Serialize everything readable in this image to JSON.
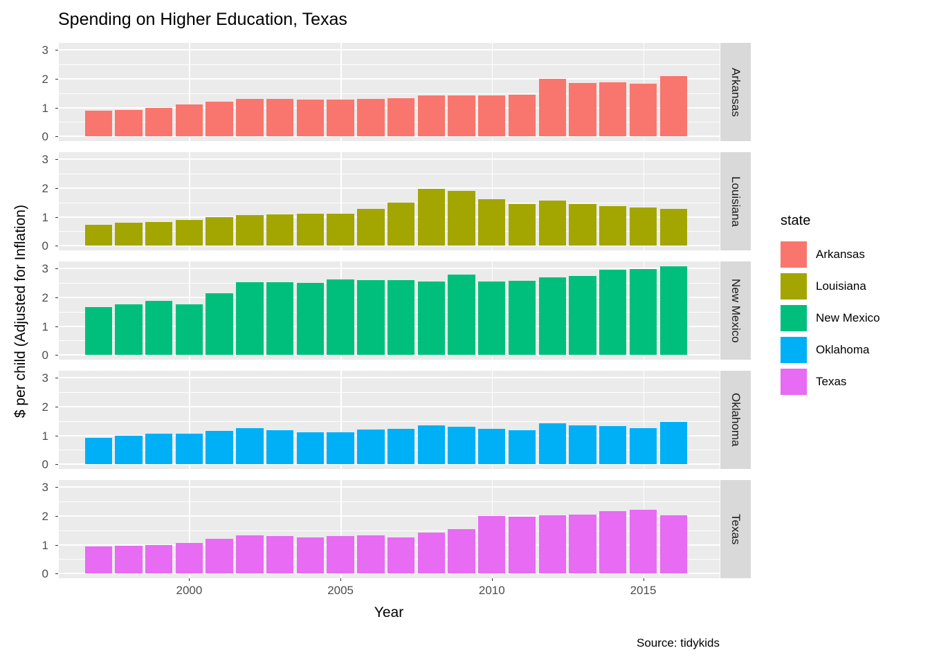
{
  "title": "Spending on Higher Education, Texas",
  "xlabel": "Year",
  "ylabel": "$ per child (Adjusted for Inflation)",
  "source": "Source: tidykids",
  "legend": {
    "title": "state",
    "items": [
      {
        "label": "Arkansas",
        "color": "#F8766D"
      },
      {
        "label": "Louisiana",
        "color": "#A3A500"
      },
      {
        "label": "New Mexico",
        "color": "#00BF7D"
      },
      {
        "label": "Oklahoma",
        "color": "#00B0F6"
      },
      {
        "label": "Texas",
        "color": "#E76BF3"
      }
    ]
  },
  "chart_data": {
    "type": "bar",
    "facet_by": "state",
    "title": "Spending on Higher Education, Texas",
    "xlabel": "Year",
    "ylabel": "$ per child (Adjusted for Inflation)",
    "x": [
      1997,
      1998,
      1999,
      2000,
      2001,
      2002,
      2003,
      2004,
      2005,
      2006,
      2007,
      2008,
      2009,
      2010,
      2011,
      2012,
      2013,
      2014,
      2015,
      2016
    ],
    "x_ticks": [
      2000,
      2005,
      2010,
      2015
    ],
    "y_ticks": [
      0,
      1,
      2,
      3
    ],
    "y_minor": [
      0.5,
      1.5,
      2.5
    ],
    "ylim": [
      0,
      3.25
    ],
    "grid": true,
    "legend_position": "right",
    "series": [
      {
        "name": "Arkansas",
        "color": "#F8766D",
        "values": [
          0.9,
          0.93,
          0.98,
          1.12,
          1.2,
          1.3,
          1.3,
          1.28,
          1.27,
          1.3,
          1.33,
          1.43,
          1.43,
          1.43,
          1.45,
          2.0,
          1.85,
          1.88,
          1.82,
          2.08
        ]
      },
      {
        "name": "Louisiana",
        "color": "#A3A500",
        "values": [
          0.73,
          0.8,
          0.82,
          0.9,
          0.98,
          1.05,
          1.08,
          1.12,
          1.1,
          1.27,
          1.5,
          1.97,
          1.9,
          1.62,
          1.45,
          1.57,
          1.45,
          1.37,
          1.33,
          1.28
        ]
      },
      {
        "name": "New Mexico",
        "color": "#00BF7D",
        "values": [
          1.67,
          1.75,
          1.88,
          1.75,
          2.15,
          2.53,
          2.53,
          2.5,
          2.62,
          2.6,
          2.6,
          2.55,
          2.78,
          2.55,
          2.58,
          2.68,
          2.73,
          2.95,
          2.97,
          3.08
        ]
      },
      {
        "name": "Oklahoma",
        "color": "#00B0F6",
        "values": [
          0.93,
          1.0,
          1.05,
          1.05,
          1.15,
          1.25,
          1.18,
          1.1,
          1.1,
          1.2,
          1.23,
          1.35,
          1.3,
          1.22,
          1.17,
          1.43,
          1.35,
          1.32,
          1.25,
          1.48
        ]
      },
      {
        "name": "Texas",
        "color": "#E76BF3",
        "values": [
          0.95,
          0.97,
          1.0,
          1.05,
          1.2,
          1.33,
          1.3,
          1.25,
          1.3,
          1.32,
          1.25,
          1.43,
          1.55,
          2.0,
          1.97,
          2.02,
          2.05,
          2.17,
          2.2,
          2.02
        ]
      }
    ]
  }
}
